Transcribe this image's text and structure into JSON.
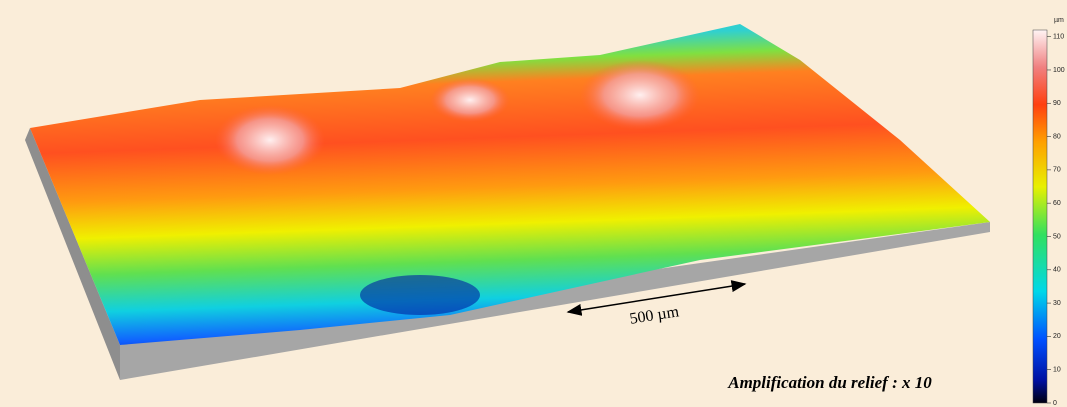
{
  "colorbar": {
    "unit": "µm",
    "range": [
      0,
      112
    ],
    "ticks": [
      0,
      10,
      20,
      30,
      40,
      50,
      60,
      70,
      80,
      90,
      100,
      110
    ]
  },
  "scale_bar": {
    "label": "500 µm"
  },
  "caption": "Amplification du relief : x 10"
}
